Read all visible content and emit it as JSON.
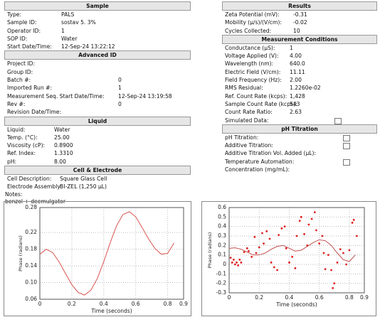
{
  "sample": {
    "title": "Sample",
    "rows": [
      [
        "Type:",
        "PALS"
      ],
      [
        "Sample ID:",
        "sostav 5. 3%"
      ],
      [
        "Operator ID:",
        "1"
      ],
      [
        "SOP ID:",
        "Water"
      ],
      [
        "Start Date/Time:",
        "12-Sep-24 13:22:12"
      ]
    ]
  },
  "advanced_id": {
    "title": "Advanced ID",
    "rows": [
      [
        "Project ID:"
      ],
      [
        "Group ID:"
      ],
      [
        "Batch #:",
        "0"
      ],
      [
        "Imported Run #:",
        "1"
      ],
      [
        "Measurement Seq. Start Date/Time:",
        "12-Sep-24 13:19:58"
      ],
      [
        "Rev #:",
        "0"
      ],
      [
        "Revision Date/Time:"
      ]
    ]
  },
  "liquid": {
    "title": "Liquid",
    "rows": [
      [
        "Liquid:",
        "Water"
      ],
      [
        "Temp. (°C):",
        "25.00"
      ],
      [
        "Viscosity (cP):",
        "0.8900"
      ],
      [
        "Ref. Index:",
        "1.3310"
      ],
      [
        "pH:",
        "8.00"
      ]
    ]
  },
  "cell_electrode": {
    "title": "Cell & Electrode",
    "rows": [
      [
        "Cell Description:",
        "Square Glass Cell"
      ],
      [
        "Electrode Assembly:",
        "BI-ZEL (1,250 µL)"
      ]
    ]
  },
  "notes": {
    "label": "Notes:",
    "text": "benzol + deemulgator"
  },
  "results": {
    "title": "Results",
    "rows": [
      [
        "Zeta Potential (mV):",
        "-0.31"
      ],
      [
        "Mobility (µ/s)/(V/cm):",
        "-0.02"
      ],
      [
        "Cycles Collected:",
        "10"
      ]
    ]
  },
  "measurement_conditions": {
    "title": "Measurement Conditions",
    "rows": [
      [
        "Conductance (µS):",
        "1"
      ],
      [
        "Voltage Applied (V):",
        "4.00"
      ],
      [
        "Wavelength (nm):",
        "640.0"
      ],
      [
        "Electric Field (V/cm):",
        "11.11"
      ],
      [
        "Field Frequency (Hz):",
        "2.00"
      ],
      [
        "RMS Residual:",
        "1.2260e-02"
      ],
      [
        "Ref. Count Rate (kcps):",
        "1,428"
      ],
      [
        "Sample Count Rate (kcps):",
        "543"
      ],
      [
        "Count Rate Ratio:",
        "2.63"
      ],
      [
        "Simulated Data:"
      ]
    ]
  },
  "ph_titration": {
    "title": "pH Titration",
    "rows": [
      [
        "pH Titration:"
      ],
      [
        "Additive Titration:"
      ],
      [
        "Additive Titration Vol. Added (µL):"
      ],
      [
        "Temperature Automation:"
      ],
      [
        "Concentration (mg/mL):"
      ]
    ]
  },
  "charts": [
    {
      "type": "line",
      "xlabel": "Time (seconds)",
      "ylabel": "Phase (radians)",
      "color": "#d9534f",
      "grid": true,
      "xlim": [
        0,
        0.9
      ],
      "xticks": [
        0,
        0.2,
        0.4,
        0.6,
        0.8,
        0.9
      ],
      "ylim": [
        0.06,
        0.28
      ],
      "yticks": [
        0.06,
        {
          "value": 0.1,
          "label": "0.10"
        },
        0.14,
        0.18,
        0.22,
        0.28
      ],
      "x": [
        0,
        0.04,
        0.08,
        0.12,
        0.16,
        0.2,
        0.24,
        0.28,
        0.32,
        0.36,
        0.4,
        0.44,
        0.48,
        0.52,
        0.56,
        0.6,
        0.64,
        0.68,
        0.72,
        0.76,
        0.8,
        0.84
      ],
      "values": [
        0.168,
        0.18,
        0.172,
        0.15,
        0.122,
        0.095,
        0.076,
        0.07,
        0.082,
        0.11,
        0.15,
        0.195,
        0.236,
        0.263,
        0.27,
        0.258,
        0.232,
        0.205,
        0.182,
        0.168,
        0.17,
        0.195
      ]
    },
    {
      "type": "scatter",
      "xlabel": "Time (seconds)",
      "ylabel": "Phase (radians)",
      "grid": true,
      "xlim": [
        0,
        0.9
      ],
      "xticks": [
        0,
        0.2,
        0.4,
        0.6,
        0.8,
        0.9
      ],
      "ylim": [
        -0.3,
        0.6
      ],
      "yticks": [
        -0.3,
        -0.2,
        -0.1,
        0,
        0.1,
        0.2,
        0.3,
        0.4,
        0.5,
        0.6
      ],
      "series": [
        {
          "type": "scatter",
          "color": "#e02020",
          "x": [
            0.01,
            0.02,
            0.03,
            0.04,
            0.05,
            0.06,
            0.07,
            0.08,
            0.1,
            0.12,
            0.13,
            0.15,
            0.17,
            0.18,
            0.2,
            0.22,
            0.23,
            0.25,
            0.27,
            0.28,
            0.3,
            0.32,
            0.33,
            0.35,
            0.37,
            0.38,
            0.4,
            0.42,
            0.44,
            0.45,
            0.47,
            0.48,
            0.5,
            0.52,
            0.53,
            0.55,
            0.57,
            0.58,
            0.6,
            0.62,
            0.63,
            0.64,
            0.66,
            0.68,
            0.69,
            0.7,
            0.72,
            0.74,
            0.76,
            0.78,
            0.8,
            0.82,
            0.83,
            0.85
          ],
          "values": [
            0.07,
            0.02,
            0.05,
            0,
            0.02,
            -0.01,
            0.05,
            0.02,
            0.13,
            0.17,
            0.14,
            0.08,
            0.29,
            0.12,
            0.18,
            0.33,
            0.22,
            0.35,
            0.27,
            0.02,
            -0.03,
            -0.06,
            0.31,
            0.38,
            0.4,
            0.17,
            0.02,
            0.08,
            -0.04,
            0.3,
            0.46,
            0.5,
            0.32,
            0.2,
            0.42,
            0.48,
            0.55,
            0.36,
            0.22,
            0.3,
            0.12,
            -0.05,
            0.1,
            -0.06,
            -0.25,
            -0.2,
            0.02,
            0.16,
            0.12,
            0,
            0.15,
            0.44,
            0.47,
            0.3
          ]
        },
        {
          "type": "line",
          "color": "#c0504d",
          "x": [
            0,
            0.04,
            0.08,
            0.12,
            0.16,
            0.2,
            0.24,
            0.28,
            0.32,
            0.36,
            0.4,
            0.44,
            0.48,
            0.52,
            0.56,
            0.6,
            0.64,
            0.68,
            0.72,
            0.76,
            0.8,
            0.84
          ],
          "values": [
            0.17,
            0.175,
            0.16,
            0.13,
            0.1,
            0.1,
            0.12,
            0.16,
            0.19,
            0.2,
            0.17,
            0.14,
            0.15,
            0.19,
            0.23,
            0.26,
            0.25,
            0.2,
            0.12,
            0.05,
            0.03,
            0.1
          ]
        }
      ]
    }
  ]
}
